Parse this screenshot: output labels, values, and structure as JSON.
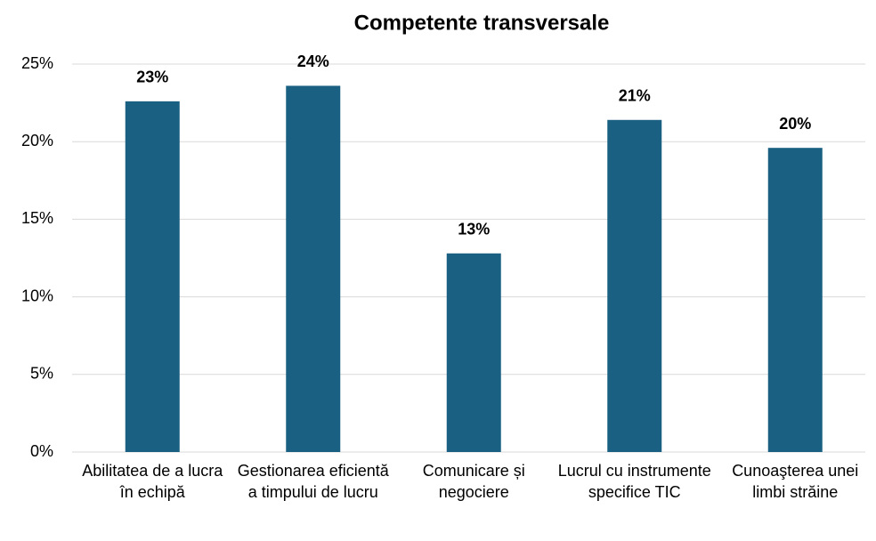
{
  "chart_data": {
    "type": "bar",
    "title": "Competente transversale",
    "categories": [
      "Abilitatea de a lucra în echipă",
      "Gestionarea eficientă a timpului de lucru",
      "Comunicare și negociere",
      "Lucrul cu instrumente specifice TIC",
      "Cunoaşterea unei limbi străine"
    ],
    "values": [
      22.6,
      23.6,
      12.8,
      21.4,
      19.6
    ],
    "value_labels": [
      "23%",
      "24%",
      "13%",
      "21%",
      "20%"
    ],
    "color": "#1a6082",
    "ylim": [
      0,
      25
    ],
    "yticks": [
      {
        "value": 0,
        "label": "0%"
      },
      {
        "value": 5,
        "label": "5%"
      },
      {
        "value": 10,
        "label": "10%"
      },
      {
        "value": 15,
        "label": "15%"
      },
      {
        "value": 20,
        "label": "20%"
      },
      {
        "value": 25,
        "label": "25%"
      }
    ],
    "grid": true
  }
}
